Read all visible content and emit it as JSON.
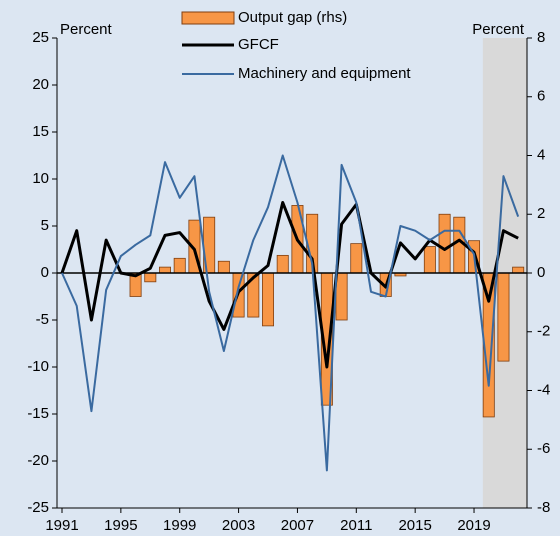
{
  "chart_data": {
    "type": "combo",
    "x": [
      1991,
      1992,
      1993,
      1994,
      1995,
      1996,
      1997,
      1998,
      1999,
      2000,
      2001,
      2002,
      2003,
      2004,
      2005,
      2006,
      2007,
      2008,
      2009,
      2010,
      2011,
      2012,
      2013,
      2014,
      2015,
      2016,
      2017,
      2018,
      2019,
      2020,
      2021,
      2022
    ],
    "series": [
      {
        "name": "Output gap (rhs)",
        "type": "bar",
        "axis": "y2",
        "color": "#f79646",
        "values": [
          0,
          0,
          0,
          0,
          0,
          -0.8,
          -0.3,
          0.2,
          0.5,
          1.8,
          1.9,
          0.4,
          -1.5,
          -1.5,
          -1.8,
          0.6,
          2.3,
          2.0,
          -4.5,
          -1.6,
          1.0,
          0,
          -0.8,
          -0.1,
          0,
          0.9,
          2.0,
          1.9,
          1.1,
          -4.9,
          -3.0,
          0.2
        ]
      },
      {
        "name": "GFCF",
        "type": "line",
        "color": "#000000",
        "values": [
          0,
          4.5,
          -5,
          3.5,
          0,
          -0.3,
          0.5,
          4,
          4.3,
          2.5,
          -3,
          -6,
          -2,
          -0.5,
          0.8,
          7.5,
          3.5,
          1.5,
          -10,
          5.2,
          7.3,
          0,
          -1.5,
          3.2,
          1.5,
          3.5,
          2.5,
          3.5,
          2.2,
          -3,
          4.5,
          3.7
        ]
      },
      {
        "name": "Machinery and equipment",
        "type": "line",
        "color": "#3a6aa0",
        "values": [
          0,
          -3.5,
          -14.7,
          -1.8,
          1.8,
          3,
          4,
          11.8,
          8,
          10.3,
          -2,
          -8.3,
          -1.5,
          3.5,
          7,
          12.5,
          7.5,
          1,
          -21,
          11.5,
          7.5,
          -2,
          -2.5,
          5,
          4.5,
          3.5,
          4.5,
          4.5,
          2,
          -12,
          10.3,
          6
        ]
      }
    ],
    "y_label": "Percent",
    "y2_label": "Percent",
    "xlim": [
      1991,
      2022.6
    ],
    "xticks": [
      1991,
      1995,
      1999,
      2003,
      2007,
      2011,
      2015,
      2019
    ],
    "ylim": [
      -25,
      25
    ],
    "yticks": [
      25,
      20,
      15,
      10,
      5,
      0,
      -5,
      -10,
      -15,
      -20,
      -25
    ],
    "y2lim": [
      -8,
      8
    ],
    "y2ticks": [
      8,
      6,
      4,
      2,
      0,
      -2,
      -4,
      -6,
      -8
    ],
    "shaded_from": 2019.6,
    "shade_color": "#d9d9d9",
    "background": "#dce6f2"
  }
}
